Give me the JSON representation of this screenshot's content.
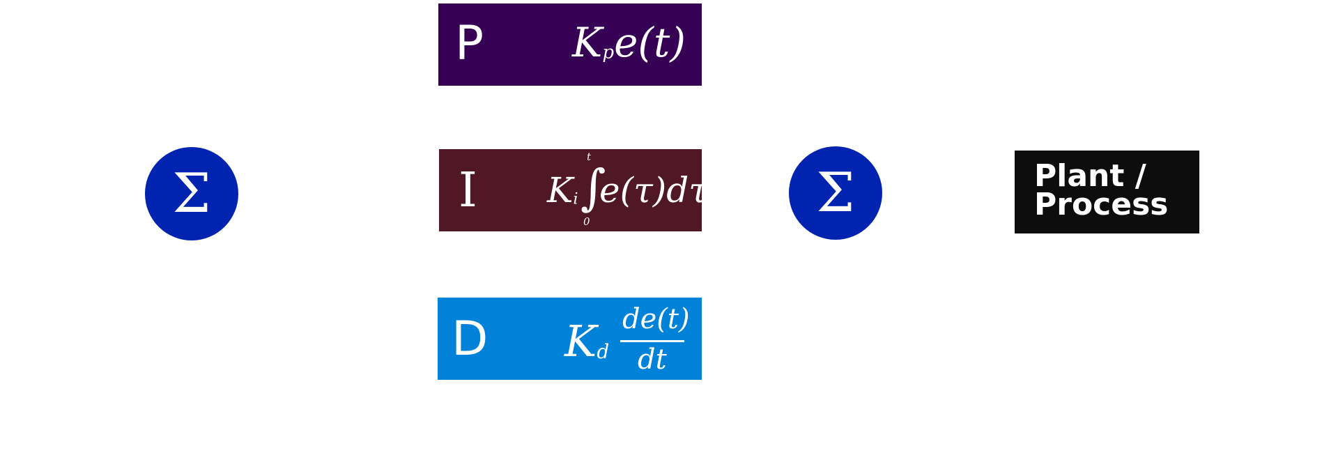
{
  "colors": {
    "p_block": "#360054",
    "i_block": "#501724",
    "d_block": "#0082D9",
    "sum_node": "#0023B0",
    "plant_block": "#0D0D0D",
    "background": "#FFFFFF"
  },
  "sum_left": {
    "symbol": "Σ"
  },
  "sum_right": {
    "symbol": "Σ"
  },
  "p_block": {
    "letter": "P",
    "gain": "K",
    "gain_sub": "p",
    "term": "e(t)"
  },
  "i_block": {
    "letter": "I",
    "gain": "K",
    "gain_sub": "i",
    "integral": "∫",
    "upper_limit": "t",
    "lower_limit": "0",
    "term": "e(τ)dτ"
  },
  "d_block": {
    "letter": "D",
    "gain": "K",
    "gain_sub": "d",
    "numerator": "de(t)",
    "denominator": "dt"
  },
  "plant": {
    "label": "Plant /\nProcess"
  }
}
